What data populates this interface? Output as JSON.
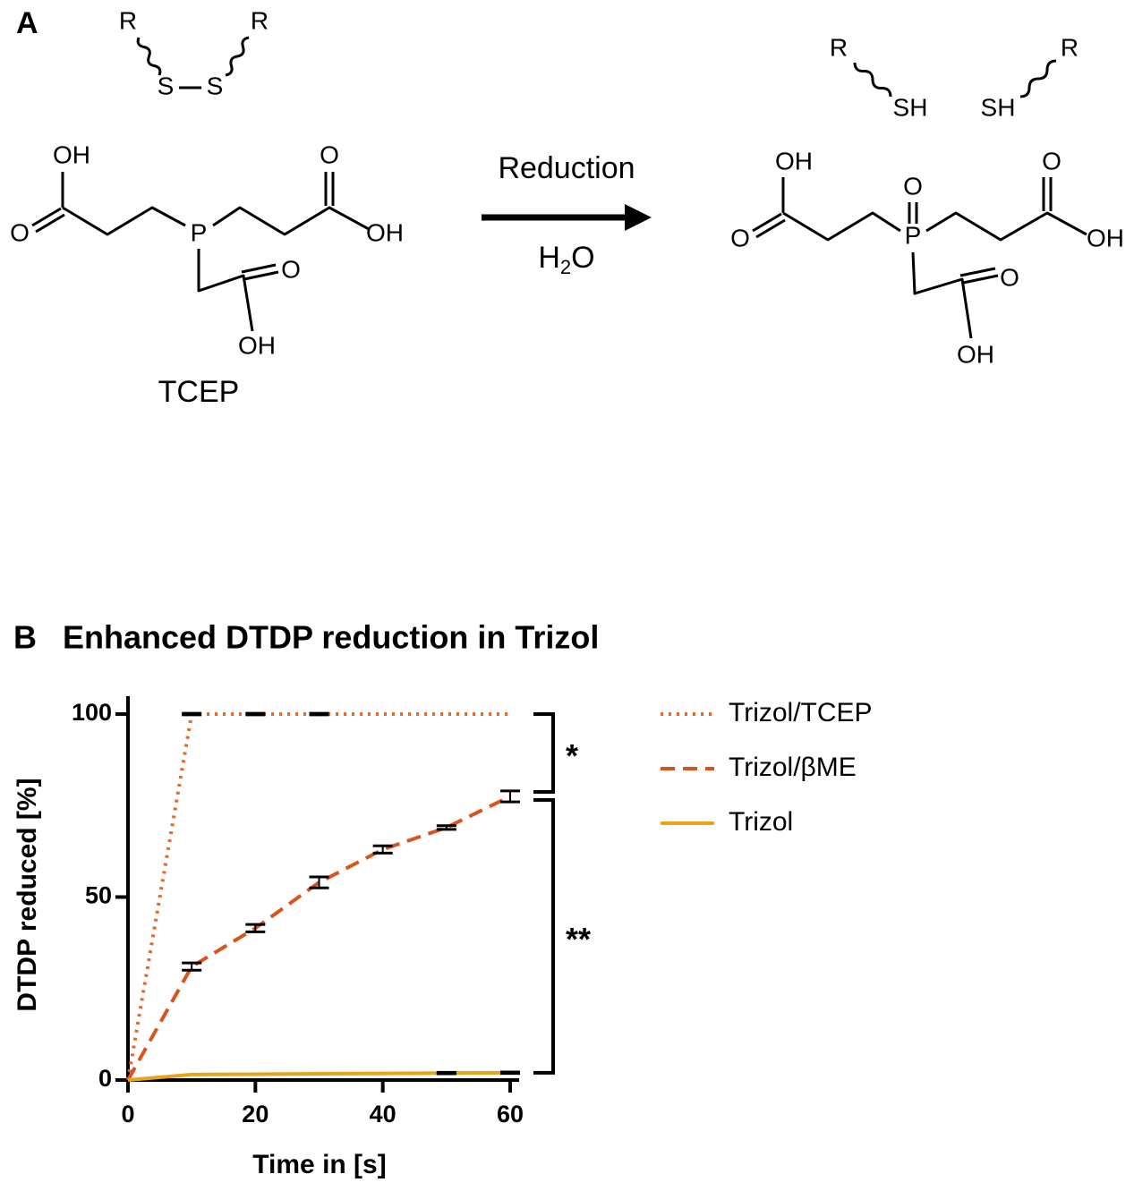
{
  "scheme": {
    "label": "A",
    "disulfide_labels": [
      "R",
      "R",
      "S",
      "S"
    ],
    "tcep_labels": [
      "OH",
      "O",
      "P",
      "O",
      "OH",
      "O",
      "OH"
    ],
    "tcep_name": "TCEP",
    "condition": "Reduction",
    "reagent": [
      "H",
      "2",
      "O"
    ],
    "thiol_labels": [
      "R",
      "SH",
      "SH",
      "R"
    ],
    "product_labels": [
      "OH",
      "O",
      "O",
      "P",
      "O",
      "OH",
      "O",
      "OH"
    ]
  },
  "chart_data": {
    "type": "line",
    "panel_label": "B",
    "title": "Enhanced DTDP reduction in Trizol",
    "x_label": "Time in [s]",
    "y_label": "DTDP reduced [%]",
    "x": [
      0,
      10,
      20,
      30,
      40,
      50,
      60
    ],
    "series": [
      {
        "name": "Trizol/TCEP",
        "color": "#e2692b",
        "dash": "dotted",
        "values": [
          0,
          100,
          100,
          100,
          100,
          100,
          100
        ],
        "errors": [
          null,
          0.2,
          0.2,
          0.2,
          null,
          null,
          null
        ]
      },
      {
        "name": "Trizol/βME",
        "color": "#d9531e",
        "dash": "dashed",
        "values": [
          0,
          31,
          41.5,
          54,
          63,
          69,
          77.5
        ],
        "errors": [
          null,
          1,
          1,
          1.5,
          1,
          0.5,
          1.5
        ]
      },
      {
        "name": "Trizol",
        "color": "#e8a317",
        "dash": "solid",
        "values": [
          0,
          1.5,
          1.6,
          1.7,
          1.8,
          1.9,
          2
        ],
        "errors": [
          null,
          null,
          null,
          null,
          null,
          0.2,
          0.2
        ]
      }
    ],
    "xlim": [
      0,
      60
    ],
    "ylim": [
      0,
      100
    ],
    "xticks": [
      0,
      20,
      40,
      60
    ],
    "yticks": [
      0,
      50,
      100
    ],
    "grid": false,
    "legend": "right",
    "annotations": [
      {
        "text": "*"
      },
      {
        "text": "**"
      }
    ]
  }
}
